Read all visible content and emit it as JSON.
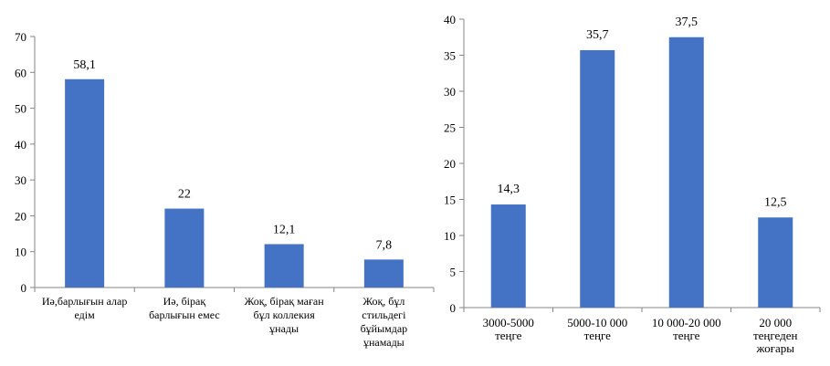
{
  "chart_data": [
    {
      "type": "bar",
      "categories": [
        [
          "Иә,барлығын алар",
          "едім"
        ],
        [
          "Иә, бірақ",
          "барлығын емес"
        ],
        [
          "Жоқ, бірақ маған",
          "бұл коллекия",
          "ұнады"
        ],
        [
          "Жоқ, бұл",
          "стильдегі",
          "бұйымдар",
          "ұнамады"
        ]
      ],
      "values": [
        58.1,
        22,
        12.1,
        7.8
      ],
      "value_labels": [
        "58,1",
        "22",
        "12,1",
        "7,8"
      ],
      "yticks": [
        "0",
        "10",
        "20",
        "30",
        "40",
        "50",
        "60",
        "70"
      ],
      "ylim": [
        0,
        70
      ],
      "bar_color": "#4472C4",
      "grid": false
    },
    {
      "type": "bar",
      "categories": [
        [
          "3000-5000",
          "теңге"
        ],
        [
          "5000-10 000",
          "теңге"
        ],
        [
          "10 000-20 000",
          "теңге"
        ],
        [
          "20 000",
          "теңгеден",
          "жоғары"
        ]
      ],
      "values": [
        14.3,
        35.7,
        37.5,
        12.5
      ],
      "value_labels": [
        "14,3",
        "35,7",
        "37,5",
        "12,5"
      ],
      "yticks": [
        "0",
        "5",
        "10",
        "15",
        "20",
        "25",
        "30",
        "35",
        "40"
      ],
      "ylim": [
        0,
        40
      ],
      "bar_color": "#4472C4",
      "grid": false
    }
  ]
}
